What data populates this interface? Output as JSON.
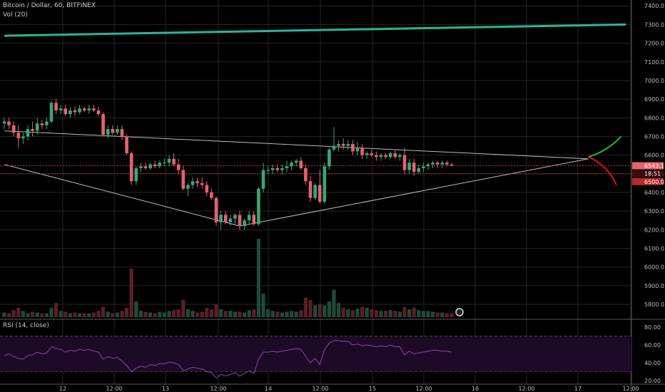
{
  "header": {
    "title": "Bitcoin / Dollar, 60, BITFINEX",
    "volume_label": "Vol (20)",
    "rsi_label": "RSI (14, close)"
  },
  "colors": {
    "background": "#000000",
    "grid": "#262626",
    "up_candle": "#3aa57b",
    "down_candle": "#e2646f",
    "up_volume": "#1f4a3a",
    "down_volume": "#5a1f28",
    "trend_line": "#bdbdbd",
    "long_trend_line": "#2bb59a",
    "projection_up": "#19c219",
    "projection_down": "#e01010",
    "level_line": "#c0392b",
    "rsi_line": "#8e44ad",
    "rsi_band": "#1d0a26",
    "axis_text": "#bdbdbd"
  },
  "price_badges": {
    "last": "6543.1",
    "countdown": "18:51",
    "level": "6500.0"
  },
  "chart_data": [
    {
      "type": "candlestick",
      "title": "Bitcoin / Dollar, 60, BITFINEX",
      "yaxis_ticks": [
        7400,
        7300,
        7200,
        7100,
        7000,
        6900,
        6800,
        6700,
        6600,
        6500,
        6400,
        6300,
        6200,
        6100,
        6000,
        5900,
        5800
      ],
      "xaxis_ticks": [
        "12",
        "12:00",
        "13",
        "12:00",
        "14",
        "12:00",
        "15",
        "12:00",
        "16",
        "12:00",
        "17",
        "12:00"
      ],
      "ylim": [
        5720,
        7420
      ],
      "candles_ohlc": [
        [
          6770,
          6800,
          6740,
          6780
        ],
        [
          6780,
          6800,
          6740,
          6760
        ],
        [
          6760,
          6780,
          6700,
          6720
        ],
        [
          6720,
          6760,
          6640,
          6690
        ],
        [
          6690,
          6720,
          6660,
          6700
        ],
        [
          6700,
          6760,
          6680,
          6740
        ],
        [
          6740,
          6780,
          6700,
          6730
        ],
        [
          6730,
          6800,
          6710,
          6770
        ],
        [
          6770,
          6790,
          6740,
          6760
        ],
        [
          6760,
          6800,
          6740,
          6780
        ],
        [
          6780,
          6890,
          6770,
          6880
        ],
        [
          6880,
          6900,
          6820,
          6840
        ],
        [
          6840,
          6870,
          6820,
          6850
        ],
        [
          6850,
          6870,
          6810,
          6820
        ],
        [
          6820,
          6860,
          6800,
          6840
        ],
        [
          6840,
          6860,
          6810,
          6830
        ],
        [
          6830,
          6870,
          6820,
          6850
        ],
        [
          6850,
          6860,
          6830,
          6840
        ],
        [
          6840,
          6870,
          6820,
          6850
        ],
        [
          6850,
          6870,
          6830,
          6840
        ],
        [
          6840,
          6860,
          6810,
          6820
        ],
        [
          6820,
          6830,
          6700,
          6710
        ],
        [
          6710,
          6760,
          6690,
          6740
        ],
        [
          6740,
          6760,
          6710,
          6720
        ],
        [
          6720,
          6760,
          6710,
          6740
        ],
        [
          6740,
          6760,
          6680,
          6700
        ],
        [
          6700,
          6710,
          6600,
          6610
        ],
        [
          6610,
          6620,
          6440,
          6460
        ],
        [
          6460,
          6540,
          6440,
          6530
        ],
        [
          6530,
          6560,
          6510,
          6540
        ],
        [
          6540,
          6560,
          6520,
          6530
        ],
        [
          6530,
          6560,
          6520,
          6550
        ],
        [
          6550,
          6570,
          6530,
          6540
        ],
        [
          6540,
          6570,
          6530,
          6560
        ],
        [
          6560,
          6580,
          6540,
          6560
        ],
        [
          6560,
          6600,
          6540,
          6580
        ],
        [
          6580,
          6610,
          6540,
          6550
        ],
        [
          6550,
          6580,
          6500,
          6520
        ],
        [
          6520,
          6540,
          6410,
          6420
        ],
        [
          6420,
          6450,
          6380,
          6440
        ],
        [
          6440,
          6480,
          6420,
          6460
        ],
        [
          6460,
          6480,
          6430,
          6450
        ],
        [
          6450,
          6480,
          6420,
          6440
        ],
        [
          6440,
          6460,
          6380,
          6400
        ],
        [
          6400,
          6420,
          6360,
          6370
        ],
        [
          6370,
          6380,
          6220,
          6240
        ],
        [
          6240,
          6300,
          6200,
          6280
        ],
        [
          6280,
          6300,
          6230,
          6240
        ],
        [
          6240,
          6280,
          6220,
          6260
        ],
        [
          6260,
          6290,
          6230,
          6280
        ],
        [
          6280,
          6300,
          6200,
          6220
        ],
        [
          6220,
          6260,
          6200,
          6250
        ],
        [
          6250,
          6300,
          6230,
          6280
        ],
        [
          6280,
          6300,
          6220,
          6230
        ],
        [
          6230,
          6430,
          6220,
          6420
        ],
        [
          6420,
          6560,
          6400,
          6520
        ],
        [
          6520,
          6540,
          6500,
          6520
        ],
        [
          6520,
          6550,
          6500,
          6530
        ],
        [
          6530,
          6550,
          6510,
          6520
        ],
        [
          6520,
          6550,
          6500,
          6530
        ],
        [
          6530,
          6570,
          6510,
          6540
        ],
        [
          6540,
          6570,
          6520,
          6560
        ],
        [
          6560,
          6580,
          6540,
          6570
        ],
        [
          6570,
          6590,
          6520,
          6530
        ],
        [
          6530,
          6550,
          6440,
          6460
        ],
        [
          6460,
          6490,
          6350,
          6370
        ],
        [
          6370,
          6450,
          6360,
          6440
        ],
        [
          6440,
          6520,
          6340,
          6350
        ],
        [
          6350,
          6560,
          6340,
          6540
        ],
        [
          6540,
          6640,
          6520,
          6630
        ],
        [
          6630,
          6750,
          6620,
          6650
        ],
        [
          6650,
          6680,
          6620,
          6660
        ],
        [
          6660,
          6690,
          6630,
          6650
        ],
        [
          6650,
          6680,
          6630,
          6660
        ],
        [
          6660,
          6680,
          6600,
          6620
        ],
        [
          6620,
          6670,
          6600,
          6640
        ],
        [
          6640,
          6660,
          6580,
          6600
        ],
        [
          6600,
          6620,
          6580,
          6610
        ],
        [
          6610,
          6630,
          6590,
          6600
        ],
        [
          6600,
          6620,
          6570,
          6590
        ],
        [
          6590,
          6610,
          6570,
          6600
        ],
        [
          6600,
          6610,
          6580,
          6590
        ],
        [
          6590,
          6620,
          6580,
          6610
        ],
        [
          6610,
          6630,
          6580,
          6590
        ],
        [
          6590,
          6610,
          6570,
          6600
        ],
        [
          6600,
          6640,
          6500,
          6520
        ],
        [
          6520,
          6580,
          6500,
          6560
        ],
        [
          6560,
          6580,
          6490,
          6510
        ],
        [
          6510,
          6550,
          6500,
          6530
        ],
        [
          6530,
          6560,
          6510,
          6540
        ],
        [
          6540,
          6560,
          6520,
          6550
        ],
        [
          6550,
          6570,
          6530,
          6560
        ],
        [
          6560,
          6570,
          6530,
          6550
        ],
        [
          6550,
          6570,
          6530,
          6560
        ],
        [
          6560,
          6570,
          6540,
          6550
        ],
        [
          6550,
          6560,
          6540,
          6543
        ]
      ],
      "volume_relative": [
        0.06,
        0.05,
        0.09,
        0.12,
        0.08,
        0.05,
        0.07,
        0.06,
        0.05,
        0.05,
        0.12,
        0.18,
        0.08,
        0.07,
        0.05,
        0.06,
        0.05,
        0.05,
        0.05,
        0.06,
        0.08,
        0.13,
        0.07,
        0.05,
        0.06,
        0.08,
        0.12,
        0.62,
        0.2,
        0.08,
        0.07,
        0.06,
        0.05,
        0.07,
        0.06,
        0.08,
        0.09,
        0.1,
        0.22,
        0.1,
        0.08,
        0.06,
        0.07,
        0.12,
        0.1,
        0.16,
        0.1,
        0.08,
        0.08,
        0.07,
        0.07,
        0.06,
        0.09,
        0.1,
        1.0,
        0.3,
        0.1,
        0.08,
        0.07,
        0.06,
        0.07,
        0.08,
        0.07,
        0.09,
        0.25,
        0.22,
        0.15,
        0.16,
        0.15,
        0.2,
        0.35,
        0.18,
        0.12,
        0.1,
        0.09,
        0.11,
        0.13,
        0.12,
        0.1,
        0.09,
        0.08,
        0.08,
        0.09,
        0.08,
        0.07,
        0.13,
        0.1,
        0.12,
        0.09,
        0.08,
        0.08,
        0.07,
        0.06,
        0.06,
        0.05,
        0.05
      ],
      "trendlines": [
        {
          "name": "upper-descending",
          "from": {
            "x": 0,
            "y": 6730
          },
          "to": {
            "x": 124,
            "y": 6580
          }
        },
        {
          "name": "lower-ascending",
          "from": {
            "x": 0,
            "y": 6550
          },
          "to": {
            "x": 50,
            "y": 6220
          }
        },
        {
          "name": "rising-support",
          "from": {
            "x": 50,
            "y": 6220
          },
          "to": {
            "x": 124,
            "y": 6580
          }
        },
        {
          "name": "long-trend",
          "from": {
            "x": 0,
            "y": 7240
          },
          "to": {
            "x": 132,
            "y": 7300
          }
        }
      ],
      "horizontal_levels": [
        6543.1,
        6500.0
      ],
      "projections": [
        {
          "name": "bullish",
          "points": [
            [
              124,
              6590
            ],
            [
              128,
              6620
            ],
            [
              131,
              6700
            ]
          ]
        },
        {
          "name": "bearish",
          "points": [
            [
              124,
              6590
            ],
            [
              128,
              6550
            ],
            [
              130,
              6440
            ]
          ]
        }
      ]
    },
    {
      "type": "line",
      "title": "RSI (14, close)",
      "yaxis_ticks": [
        80,
        60,
        40,
        20
      ],
      "ylim": [
        16,
        88
      ],
      "bands": [
        70,
        30
      ],
      "values": [
        48,
        50,
        47,
        45,
        44,
        48,
        49,
        52,
        50,
        51,
        58,
        56,
        55,
        52,
        54,
        53,
        55,
        54,
        55,
        53,
        52,
        44,
        47,
        45,
        46,
        42,
        37,
        30,
        34,
        36,
        35,
        38,
        37,
        39,
        39,
        41,
        40,
        38,
        31,
        33,
        35,
        34,
        33,
        30,
        29,
        23,
        27,
        25,
        27,
        29,
        25,
        28,
        31,
        28,
        44,
        52,
        52,
        53,
        52,
        53,
        54,
        55,
        56,
        55,
        47,
        40,
        45,
        38,
        55,
        62,
        65,
        65,
        64,
        64,
        60,
        61,
        59,
        60,
        59,
        58,
        59,
        58,
        60,
        58,
        58,
        49,
        53,
        50,
        51,
        52,
        53,
        54,
        54,
        53,
        53,
        52
      ]
    }
  ]
}
